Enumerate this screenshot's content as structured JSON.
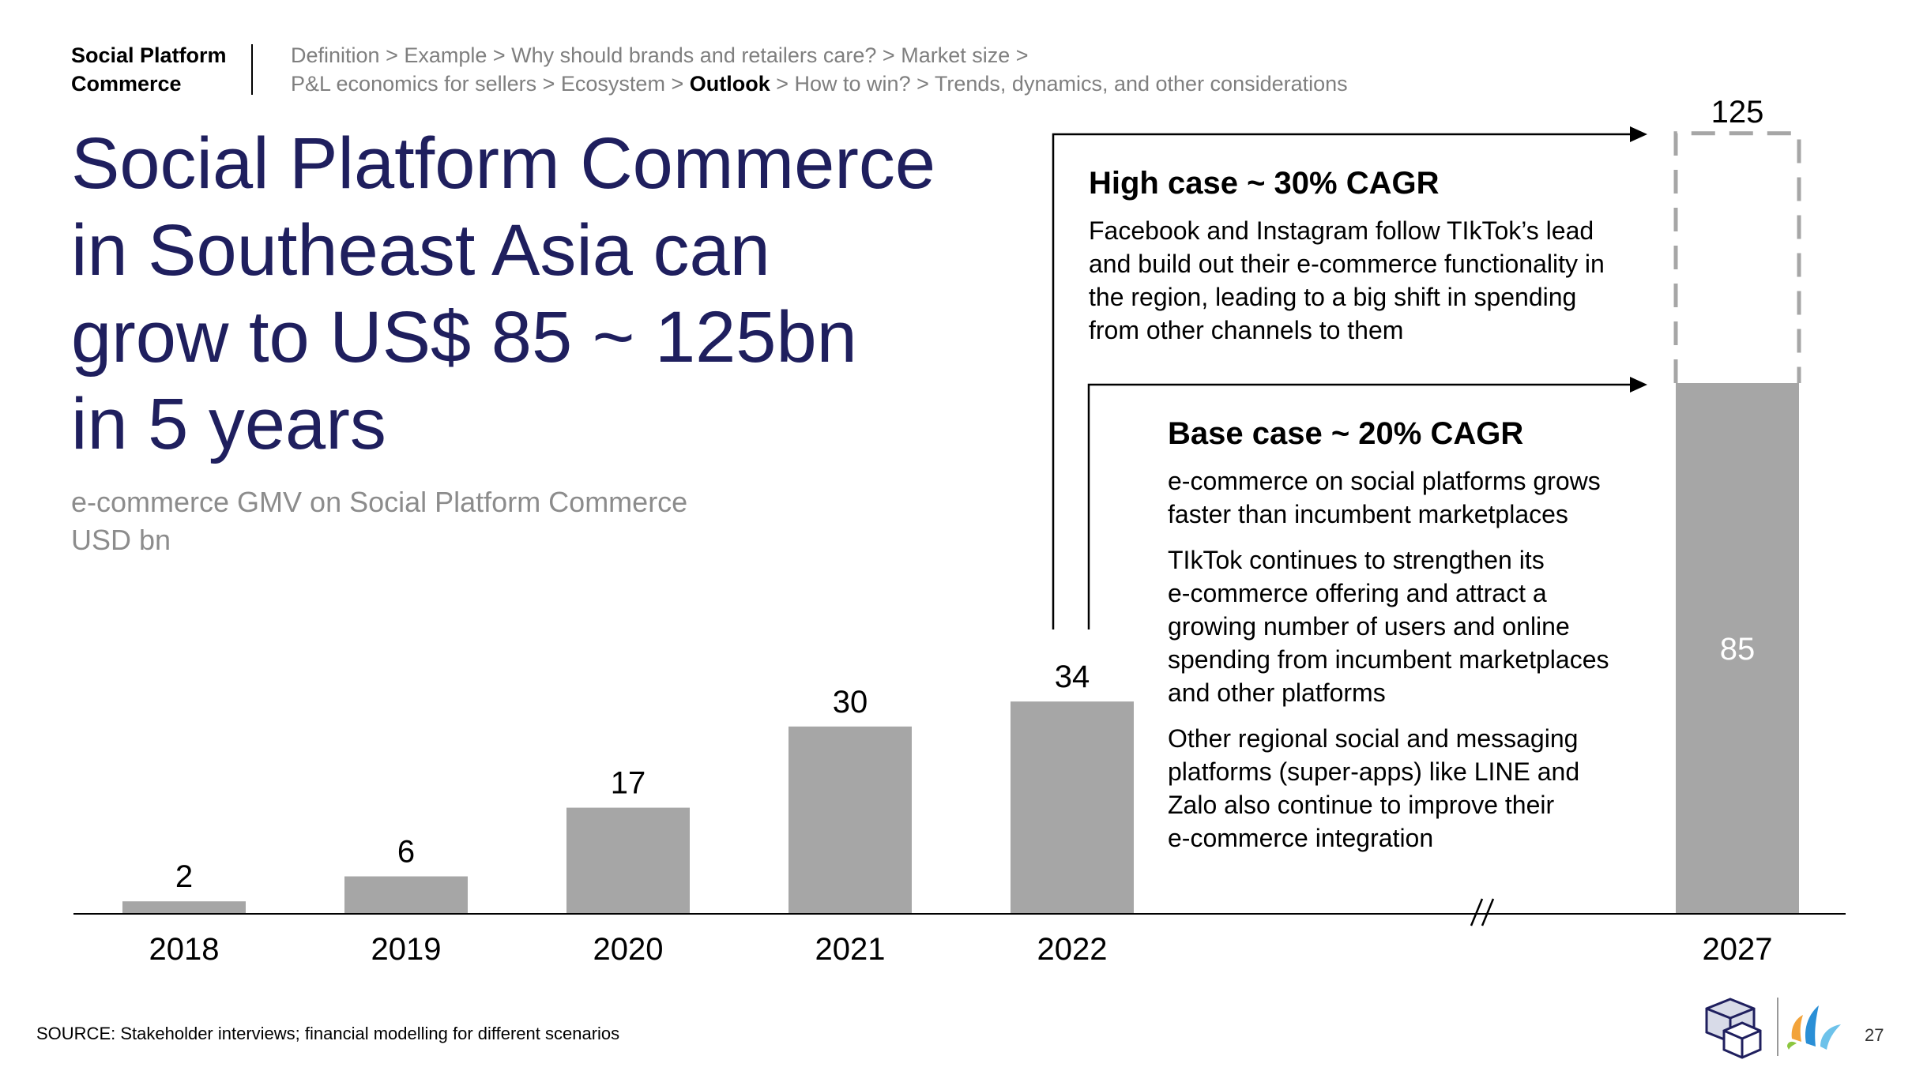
{
  "header": {
    "section_line1": "Social Platform",
    "section_line2": "Commerce",
    "breadcrumb_line1": [
      {
        "label": "Definition",
        "active": false
      },
      {
        "label": "Example",
        "active": false
      },
      {
        "label": "Why should brands and retailers care?",
        "active": false
      },
      {
        "label": "Market size",
        "active": false
      }
    ],
    "breadcrumb_line2": [
      {
        "label": "P&L economics for sellers",
        "active": false
      },
      {
        "label": "Ecosystem",
        "active": false
      },
      {
        "label": "Outlook",
        "active": true
      },
      {
        "label": "How to win?",
        "active": false
      },
      {
        "label": "Trends, dynamics, and other considerations",
        "active": false
      }
    ],
    "separator": ">"
  },
  "title_lines": [
    "Social Platform Commerce",
    "in Southeast Asia can",
    "grow to US$ 85 ~ 125bn",
    "in 5 years"
  ],
  "subtitle_line1": "e-commerce GMV on Social Platform Commerce",
  "subtitle_line2": "USD bn",
  "high_case": {
    "heading": "High case ~ 30% CAGR",
    "text_lines": [
      "Facebook and Instagram follow TIkTok’s lead",
      "and build out their e-commerce functionality in",
      "the region, leading to a big shift in spending",
      "from other channels to them"
    ]
  },
  "base_case": {
    "heading": "Base case ~ 20% CAGR",
    "paragraphs": [
      [
        "e-commerce on social platforms grows",
        "faster than incumbent marketplaces"
      ],
      [
        "TIkTok continues to strengthen its",
        "e-commerce offering and attract a",
        "growing number of users and online",
        "spending from incumbent marketplaces",
        "and other platforms"
      ],
      [
        "Other regional social and messaging",
        "platforms (super-apps) like LINE and",
        "Zalo also continue to improve their",
        "e-commerce integration"
      ]
    ]
  },
  "chart_data": {
    "type": "bar",
    "categories": [
      "2018",
      "2019",
      "2020",
      "2021",
      "2022",
      "2027"
    ],
    "values": [
      2,
      6,
      17,
      30,
      34,
      85
    ],
    "high_case_2027": 125,
    "axis_break": "between 2022 and 2027",
    "ylim": [
      0,
      125
    ],
    "grid": false,
    "colors": {
      "bar": "#a6a6a6",
      "high_case_outline": "#a6a6a6",
      "label_inside": "#ffffff",
      "label": "#000000"
    }
  },
  "footer": {
    "source": "SOURCE: Stakeholder interviews; financial modelling for different scenarios",
    "page_number": "27"
  },
  "colors": {
    "title": "#1f1f5e",
    "subtitle": "#8c8c8c",
    "breadcrumb": "#7f7f7f"
  }
}
